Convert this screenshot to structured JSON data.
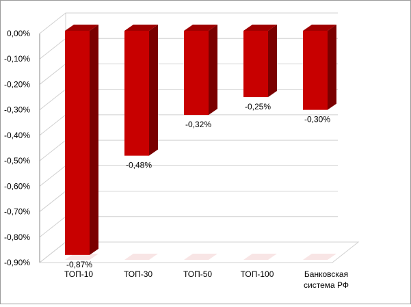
{
  "chart_data": {
    "type": "bar",
    "style": "3d-column",
    "categories": [
      [
        "ТОП-10"
      ],
      [
        "ТОП-30"
      ],
      [
        "ТОП-50"
      ],
      [
        "ТОП-100"
      ],
      [
        "Банковская",
        "система РФ"
      ]
    ],
    "values": [
      -0.87,
      -0.48,
      -0.32,
      -0.25,
      -0.3
    ],
    "data_labels": [
      "-0,87%",
      "-0,48%",
      "-0,32%",
      "-0,25%",
      "-0,30%"
    ],
    "y_ticks": [
      {
        "value": 0.0,
        "label": "0,00%"
      },
      {
        "value": -0.1,
        "label": "-0,10%"
      },
      {
        "value": -0.2,
        "label": "-0,20%"
      },
      {
        "value": -0.3,
        "label": "-0,30%"
      },
      {
        "value": -0.4,
        "label": "-0,40%"
      },
      {
        "value": -0.5,
        "label": "-0,50%"
      },
      {
        "value": -0.6,
        "label": "-0,60%"
      },
      {
        "value": -0.7,
        "label": "-0,70%"
      },
      {
        "value": -0.8,
        "label": "-0,80%"
      },
      {
        "value": -0.9,
        "label": "-0,90%"
      }
    ],
    "ylim": [
      -0.9,
      0.0
    ],
    "grid": true,
    "legend": "none",
    "colors": {
      "bar_front": "#c80000",
      "bar_side": "#7a0000",
      "bar_top": "#a00000",
      "grid": "#d0d0d0",
      "axis": "#888888"
    }
  }
}
